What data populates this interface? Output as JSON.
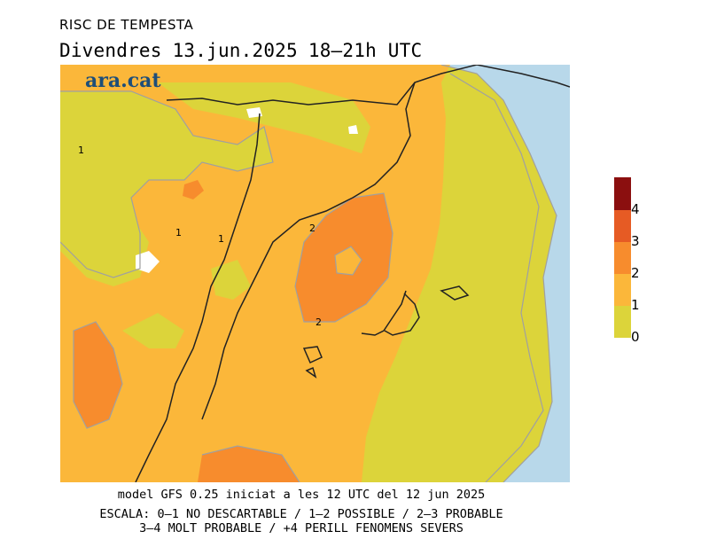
{
  "header": {
    "title": "RISC DE TEMPESTA",
    "day": "Divendres",
    "date": "13.jun.2025",
    "time_range": "18—21h UTC"
  },
  "logo": {
    "text": "ara.cat"
  },
  "map": {
    "contour_labels": [
      "1",
      "1",
      "1",
      "2",
      "2"
    ],
    "colors": {
      "sea": "#b8d8ea",
      "level_0_1": "#dcd43a",
      "level_1_2": "#fbb73a",
      "level_2_3": "#f78c2d",
      "level_3_4": "#e65b24",
      "level_4_plus": "#8b0f0f",
      "no_data": "#ffffff",
      "contour": "#a0a0a0",
      "border": "#222222"
    }
  },
  "legend": {
    "labels": [
      "0",
      "1",
      "2",
      "3",
      "4"
    ],
    "colors": [
      "#dcd43a",
      "#fbb73a",
      "#f78c2d",
      "#e65b24",
      "#c93a1a",
      "#8b0f0f"
    ]
  },
  "footer": {
    "model_line": "model GFS 0.25 iniciat a les 12 UTC del 12 jun 2025",
    "scale_line1": "ESCALA: 0–1 NO DESCARTABLE / 1–2 POSSIBLE / 2–3 PROBABLE",
    "scale_line2": "3–4 MOLT PROBABLE / +4 PERILL FENOMENS SEVERS"
  }
}
